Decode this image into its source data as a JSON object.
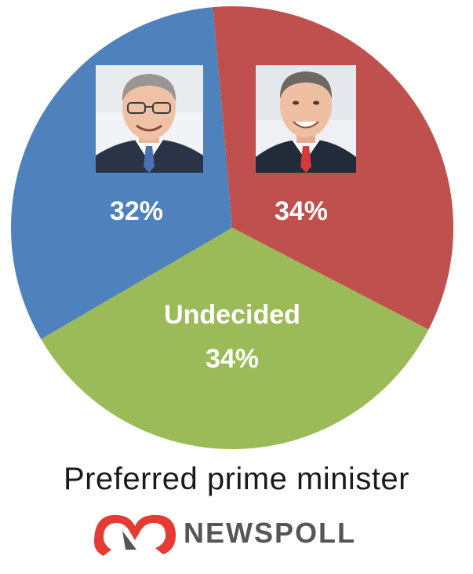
{
  "chart_data": {
    "type": "pie",
    "title": "Preferred prime minister",
    "start_angle_deg": -5,
    "slices": [
      {
        "label": "",
        "value": 34,
        "value_label": "34%",
        "color": "#c0504d",
        "avatar": "bill-shorten-photo"
      },
      {
        "label": "Undecided",
        "value": 34,
        "value_label": "34%",
        "color": "#9bbb59"
      },
      {
        "label": "",
        "value": 32,
        "value_label": "32%",
        "color": "#4f81bd",
        "avatar": "scott-morrison-photo"
      }
    ]
  },
  "brand": {
    "name": "NEWSPOLL",
    "logo_icon": "newspoll-logo-icon",
    "logo_color": "#e63b32",
    "text_color": "#555659"
  }
}
